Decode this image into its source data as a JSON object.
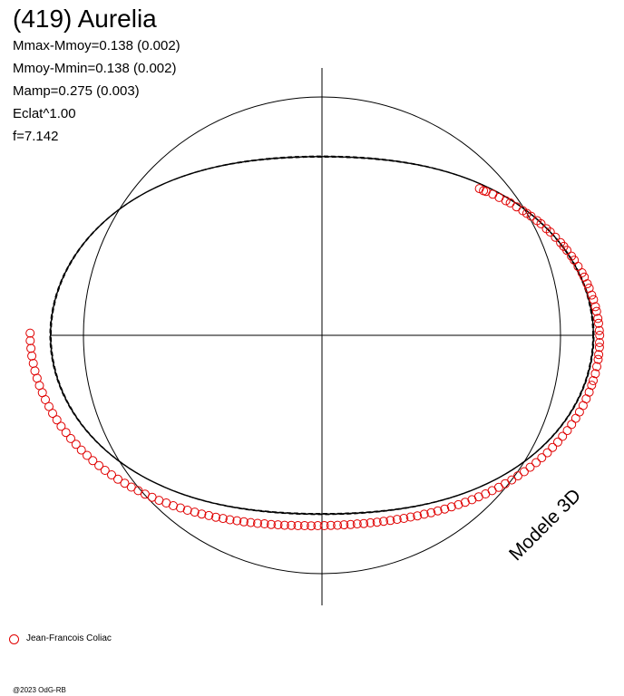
{
  "title": "(419) Aurelia",
  "params": [
    "Mmax-Mmoy=0.138 (0.002)",
    "Mmoy-Mmin=0.138 (0.002)",
    "Mamp=0.275 (0.003)",
    "Eclat^1.00",
    "f=7.142"
  ],
  "model_label": "Modele 3D",
  "legend": [
    {
      "name": "Jean-Francois Coliac",
      "color": "#e00000",
      "marker": "open-circle"
    }
  ],
  "copyright": "@2023 OdG-RB",
  "colors": {
    "axis": "#000000",
    "data": "#e00000",
    "reference": "#000000"
  },
  "chart_data": {
    "type": "scatter",
    "projection": "polar",
    "title": "(419) Aurelia",
    "reference_circle_radius": 1.0,
    "model_curves": [
      {
        "style": "solid",
        "amplitude": 0.138,
        "phase_peaks": [
          0.0,
          0.5
        ]
      },
      {
        "style": "dashed",
        "amplitude": 0.141,
        "phase_peaks": [
          0.0,
          0.5
        ]
      },
      {
        "style": "dashed",
        "amplitude": 0.135,
        "phase_peaks": [
          0.0,
          0.5
        ]
      }
    ],
    "series": [
      {
        "name": "Jean-Francois Coliac",
        "marker": "open-circle",
        "points": [
          [
            0.3,
            0.82
          ],
          [
            0.29,
            0.8
          ],
          [
            0.31,
            0.79
          ],
          [
            0.33,
            0.76
          ],
          [
            0.34,
            0.73
          ],
          [
            0.36,
            0.7
          ],
          [
            0.38,
            0.68
          ],
          [
            0.39,
            0.65
          ],
          [
            0.41,
            0.62
          ],
          [
            0.42,
            0.6
          ],
          [
            0.44,
            0.58
          ],
          [
            0.46,
            0.55
          ],
          [
            0.47,
            0.53
          ],
          [
            0.48,
            0.5
          ],
          [
            0.5,
            0.48
          ],
          [
            0.51,
            0.45
          ],
          [
            0.53,
            0.42
          ],
          [
            0.54,
            0.4
          ],
          [
            0.55,
            0.38
          ],
          [
            0.57,
            0.35
          ],
          [
            0.58,
            0.33
          ],
          [
            0.59,
            0.3
          ],
          [
            0.61,
            0.27
          ],
          [
            0.62,
            0.25
          ],
          [
            0.63,
            0.22
          ],
          [
            0.64,
            0.2
          ],
          [
            0.65,
            0.17
          ],
          [
            0.67,
            0.15
          ],
          [
            0.68,
            0.12
          ],
          [
            0.69,
            0.1
          ],
          [
            0.7,
            0.07
          ],
          [
            0.71,
            0.05
          ],
          [
            0.72,
            0.02
          ],
          [
            0.73,
            0.0
          ],
          [
            0.73,
            -0.03
          ],
          [
            0.74,
            -0.05
          ],
          [
            0.74,
            -0.08
          ],
          [
            0.75,
            -0.1
          ],
          [
            0.75,
            -0.13
          ],
          [
            0.76,
            -0.16
          ],
          [
            0.76,
            -0.19
          ],
          [
            0.76,
            -0.21
          ],
          [
            0.77,
            -0.24
          ],
          [
            0.77,
            -0.27
          ],
          [
            0.78,
            -0.3
          ],
          [
            0.78,
            -0.33
          ],
          [
            0.79,
            -0.36
          ],
          [
            0.79,
            -0.39
          ],
          [
            0.8,
            -0.42
          ],
          [
            0.8,
            -0.45
          ],
          [
            0.81,
            -0.48
          ],
          [
            0.81,
            -0.51
          ],
          [
            0.82,
            -0.54
          ],
          [
            0.82,
            -0.57
          ],
          [
            0.83,
            -0.6
          ],
          [
            0.83,
            -0.63
          ],
          [
            0.84,
            -0.66
          ],
          [
            0.84,
            -0.69
          ],
          [
            0.85,
            -0.72
          ],
          [
            0.85,
            -0.75
          ],
          [
            0.86,
            -0.78
          ],
          [
            0.86,
            -0.81
          ],
          [
            0.87,
            -0.84
          ],
          [
            0.87,
            -0.87
          ],
          [
            0.88,
            -0.9
          ],
          [
            0.88,
            -0.93
          ],
          [
            0.89,
            -0.96
          ],
          [
            0.89,
            -0.99
          ],
          [
            0.9,
            -1.02
          ],
          [
            0.9,
            -1.05
          ],
          [
            0.91,
            -1.08
          ],
          [
            0.91,
            -1.11
          ],
          [
            0.92,
            -1.14
          ],
          [
            0.92,
            -1.17
          ],
          [
            0.93,
            -1.2
          ],
          [
            0.93,
            -1.23
          ],
          [
            0.94,
            -1.26
          ],
          [
            0.94,
            -1.29
          ],
          [
            0.95,
            -1.32
          ],
          [
            0.95,
            -1.35
          ],
          [
            0.96,
            -1.38
          ],
          [
            0.96,
            -1.41
          ],
          [
            0.97,
            -1.44
          ],
          [
            0.97,
            -1.47
          ],
          [
            0.98,
            -1.5
          ],
          [
            0.98,
            -1.53
          ],
          [
            0.99,
            -1.56
          ],
          [
            0.99,
            -1.59
          ],
          [
            1.0,
            -1.62
          ],
          [
            1.0,
            -1.65
          ],
          [
            1.01,
            -1.68
          ],
          [
            1.01,
            -1.71
          ],
          [
            1.02,
            -1.74
          ],
          [
            1.02,
            -1.77
          ],
          [
            1.03,
            -1.8
          ],
          [
            1.03,
            -1.83
          ],
          [
            1.04,
            -1.86
          ],
          [
            1.04,
            -1.89
          ],
          [
            1.05,
            -1.92
          ],
          [
            1.05,
            -1.95
          ],
          [
            1.06,
            -1.98
          ],
          [
            1.06,
            -2.01
          ],
          [
            1.07,
            -2.04
          ],
          [
            1.07,
            -2.07
          ],
          [
            1.08,
            -2.1
          ],
          [
            1.08,
            -2.13
          ],
          [
            1.09,
            -2.16
          ],
          [
            1.09,
            -2.19
          ],
          [
            1.1,
            -2.22
          ],
          [
            1.1,
            -2.25
          ],
          [
            1.11,
            -2.28
          ],
          [
            1.11,
            -2.31
          ],
          [
            1.12,
            -2.34
          ],
          [
            1.12,
            -2.37
          ],
          [
            1.13,
            -2.4
          ],
          [
            1.13,
            -2.43
          ],
          [
            1.14,
            -2.46
          ],
          [
            1.14,
            -2.49
          ],
          [
            1.15,
            -2.52
          ],
          [
            1.15,
            -2.55
          ],
          [
            1.16,
            -2.58
          ],
          [
            1.16,
            -2.61
          ],
          [
            1.17,
            -2.64
          ],
          [
            1.17,
            -2.67
          ],
          [
            1.18,
            -2.7
          ],
          [
            1.18,
            -2.73
          ],
          [
            1.19,
            -2.76
          ],
          [
            1.19,
            -2.79
          ],
          [
            1.2,
            -2.82
          ],
          [
            1.2,
            -2.85
          ],
          [
            1.21,
            -2.88
          ],
          [
            1.21,
            -2.91
          ],
          [
            1.22,
            -2.94
          ],
          [
            1.22,
            -2.97
          ],
          [
            1.23,
            -3.0
          ],
          [
            1.23,
            -3.03
          ],
          [
            1.24,
            -3.06
          ],
          [
            1.24,
            -3.09
          ],
          [
            1.25,
            -3.12
          ],
          [
            1.25,
            -3.15
          ]
        ]
      }
    ]
  }
}
